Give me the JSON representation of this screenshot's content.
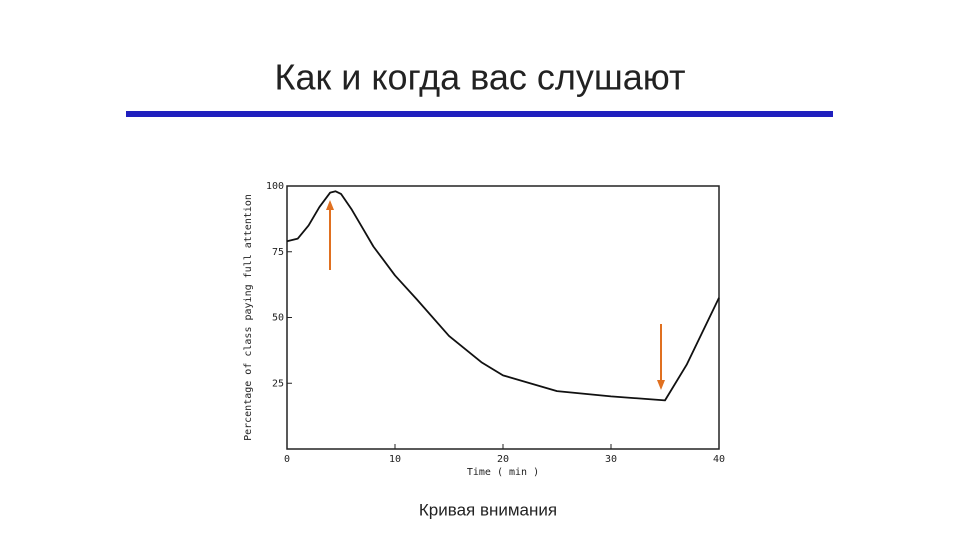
{
  "slide": {
    "title": "Как и когда вас слушают",
    "caption": "Кривая внимания"
  },
  "chart_data": {
    "type": "line",
    "x": [
      0,
      1,
      2,
      3,
      4,
      4.5,
      5,
      6,
      7,
      8,
      10,
      12,
      15,
      18,
      20,
      25,
      30,
      35,
      37,
      40
    ],
    "series": [
      {
        "color": "#111111",
        "values": [
          79,
          80,
          85,
          92,
          97.5,
          98,
          97,
          91,
          84,
          77,
          66,
          57,
          43,
          33,
          28,
          22,
          20,
          18.5,
          32,
          57.5
        ]
      }
    ],
    "xlabel": "Time ( min )",
    "ylabel": "Percentage of class paying full attention",
    "xlim": [
      0,
      40
    ],
    "ylim": [
      0,
      100
    ],
    "xticks": [
      0,
      10,
      20,
      30,
      40
    ],
    "yticks": [
      25,
      50,
      75,
      100
    ],
    "grid": false
  }
}
